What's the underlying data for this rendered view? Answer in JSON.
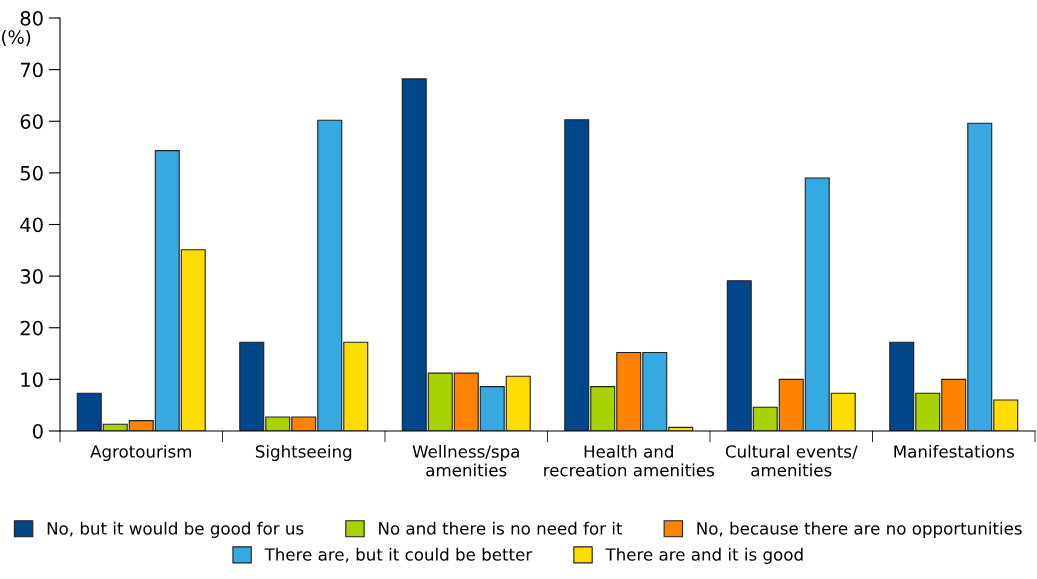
{
  "chart_data": {
    "type": "bar",
    "ylabel": "(%)",
    "categories": [
      "Agrotourism",
      "Sightseeing",
      "Wellness/spa\namenities",
      "Health and\nrecreation amenities",
      "Cultural events/\namenities",
      "Manifestations"
    ],
    "series": [
      {
        "name": "No, but it would be good for us",
        "color": "#00468b",
        "values": [
          7.3,
          17.2,
          68.2,
          60.3,
          29.1,
          17.2
        ]
      },
      {
        "name": "No and there is no need for it",
        "color": "#a8d300",
        "values": [
          1.3,
          2.7,
          11.2,
          8.6,
          4.6,
          7.3
        ]
      },
      {
        "name": "No, because there are no opportunities",
        "color": "#ff8200",
        "values": [
          2.0,
          2.7,
          11.2,
          15.2,
          10.0,
          10.0
        ]
      },
      {
        "name": "There are, but it could be better",
        "color": "#36aae0",
        "values": [
          54.3,
          60.2,
          8.6,
          15.2,
          49.0,
          59.6
        ]
      },
      {
        "name": "There are and it is good",
        "color": "#ffdd00",
        "values": [
          35.1,
          17.2,
          10.6,
          0.7,
          7.3,
          6.0
        ]
      }
    ],
    "ylim": [
      0,
      80
    ],
    "yticks": [
      0,
      10,
      20,
      30,
      40,
      50,
      60,
      70,
      80
    ],
    "grid": false,
    "legend": "bottom"
  }
}
